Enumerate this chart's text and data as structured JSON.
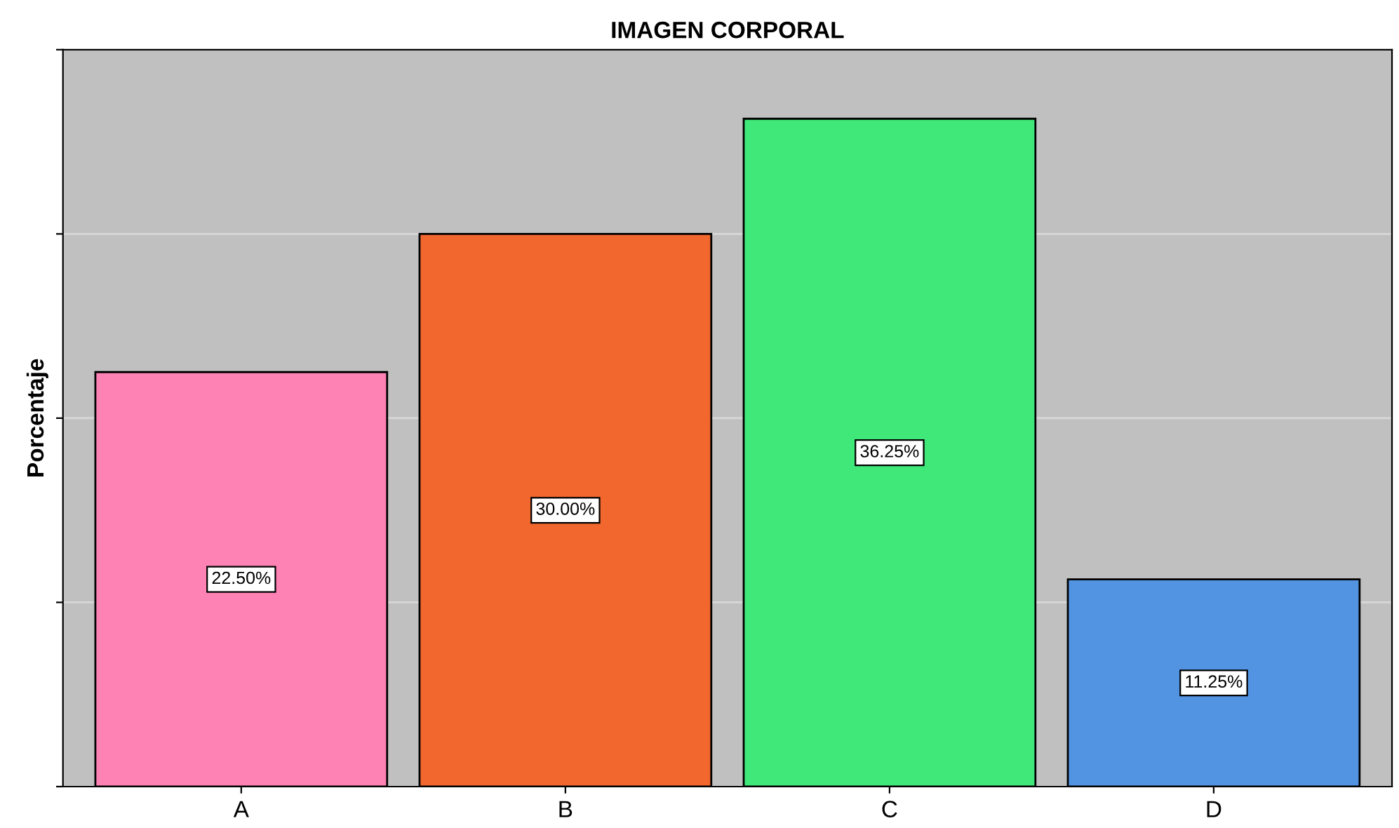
{
  "chart_data": {
    "type": "bar",
    "title": "IMAGEN CORPORAL",
    "ylabel": "Porcentaje",
    "categories": [
      "A",
      "B",
      "C",
      "D"
    ],
    "values": [
      22.5,
      30.0,
      36.25,
      11.25
    ],
    "value_labels": [
      "22.50%",
      "30.00%",
      "36.25%",
      "11.25%"
    ],
    "colors": [
      "#ff82b4",
      "#f2672d",
      "#40e87a",
      "#5294e2"
    ],
    "ylim": [
      0,
      40
    ],
    "yticks": [
      {
        "value": 0,
        "label": null
      },
      {
        "value": 10,
        "label": null
      },
      {
        "value": 20,
        "label": null
      },
      {
        "value": 30,
        "label": null
      },
      {
        "value": 40,
        "label": null
      }
    ],
    "tick_labels": "x",
    "grid": "y"
  }
}
